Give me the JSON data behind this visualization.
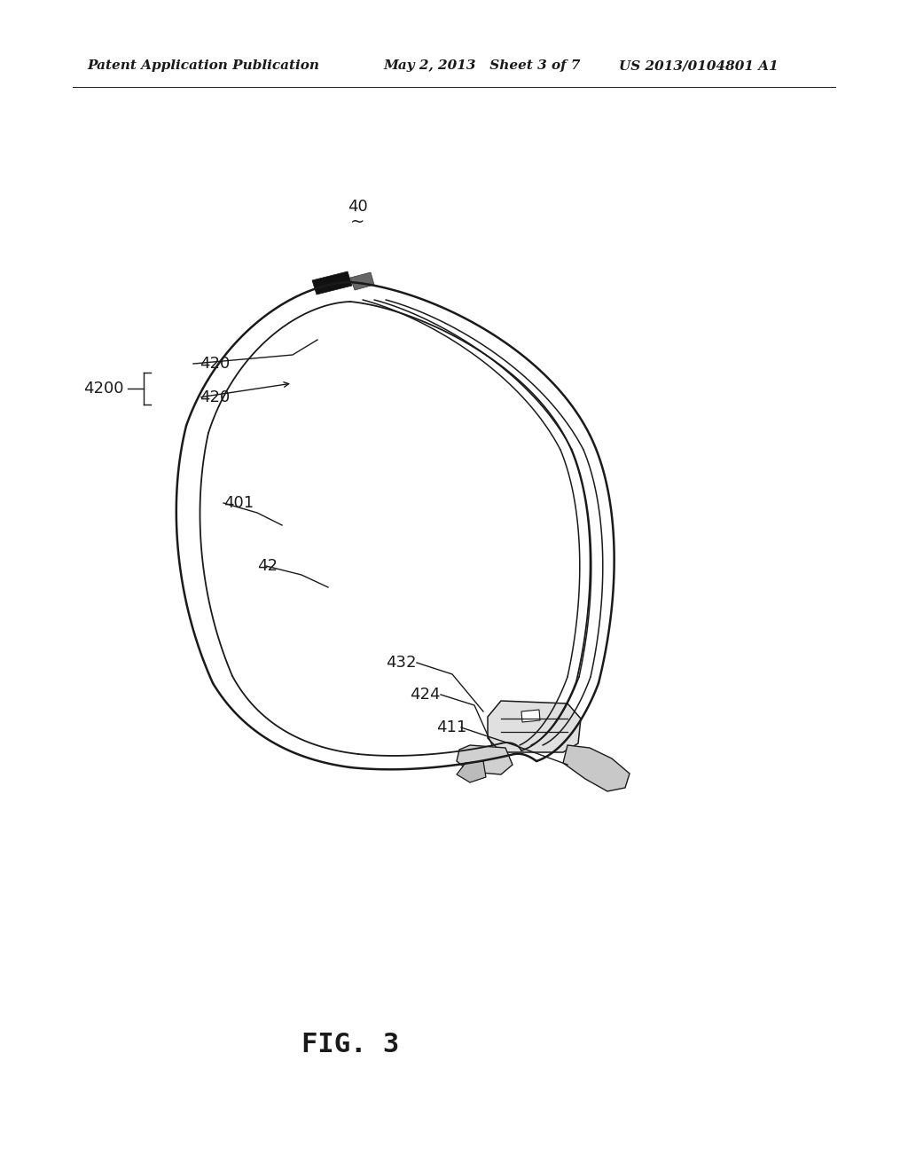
{
  "bg_color": "#ffffff",
  "line_color": "#1a1a1a",
  "header_left": "Patent Application Publication",
  "header_mid": "May 2, 2013   Sheet 3 of 7",
  "header_right": "US 2013/0104801 A1",
  "fig_label": "FIG. 3",
  "ref_40": "40",
  "label_4200": "4200",
  "label_420a": "420",
  "label_420b": "420",
  "label_401": "401",
  "label_42": "42",
  "label_432": "432",
  "label_424": "424",
  "label_411": "411",
  "header_font_size": 11,
  "label_font_size": 13,
  "fig_font_size": 22
}
